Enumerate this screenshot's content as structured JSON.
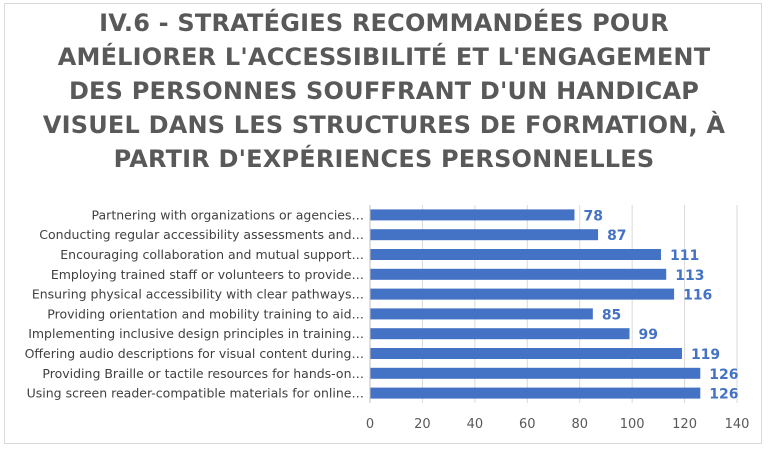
{
  "title_lines": [
    "IV.6 - STRATÉGIES RECOMMANDÉES POUR",
    "AMÉLIORER L'ACCESSIBILITÉ ET L'ENGAGEMENT",
    "DES PERSONNES SOUFFRANT D'UN HANDICAP",
    "VISUEL DANS LES STRUCTURES DE FORMATION, À",
    "PARTIR D'EXPÉRIENCES PERSONNELLES"
  ],
  "colors": {
    "bar": "#4472c4",
    "grid": "#d9d9d9",
    "title": "#595959"
  },
  "chart_data": {
    "type": "bar",
    "orientation": "horizontal",
    "title": "IV.6 - STRATÉGIES RECOMMANDÉES POUR AMÉLIORER L'ACCESSIBILITÉ ET L'ENGAGEMENT DES PERSONNES SOUFFRANT D'UN HANDICAP VISUEL DANS LES STRUCTURES DE FORMATION, À PARTIR D'EXPÉRIENCES PERSONNELLES",
    "categories": [
      "Partnering with organizations or agencies…",
      "Conducting regular accessibility assessments and…",
      "Encouraging collaboration and mutual support…",
      "Employing trained staff or volunteers to provide…",
      "Ensuring physical accessibility with clear pathways…",
      "Providing orientation and mobility training to aid…",
      "Implementing inclusive design principles in training…",
      "Offering audio descriptions for visual content during…",
      "Providing Braille or tactile resources for hands-on…",
      "Using screen reader-compatible materials for online…"
    ],
    "values": [
      78,
      87,
      111,
      113,
      116,
      85,
      99,
      119,
      126,
      126
    ],
    "xlim": [
      0,
      140
    ],
    "x_ticks": [
      0,
      20,
      40,
      60,
      80,
      100,
      120,
      140
    ],
    "grid": true,
    "legend": "none",
    "data_labels": true
  }
}
